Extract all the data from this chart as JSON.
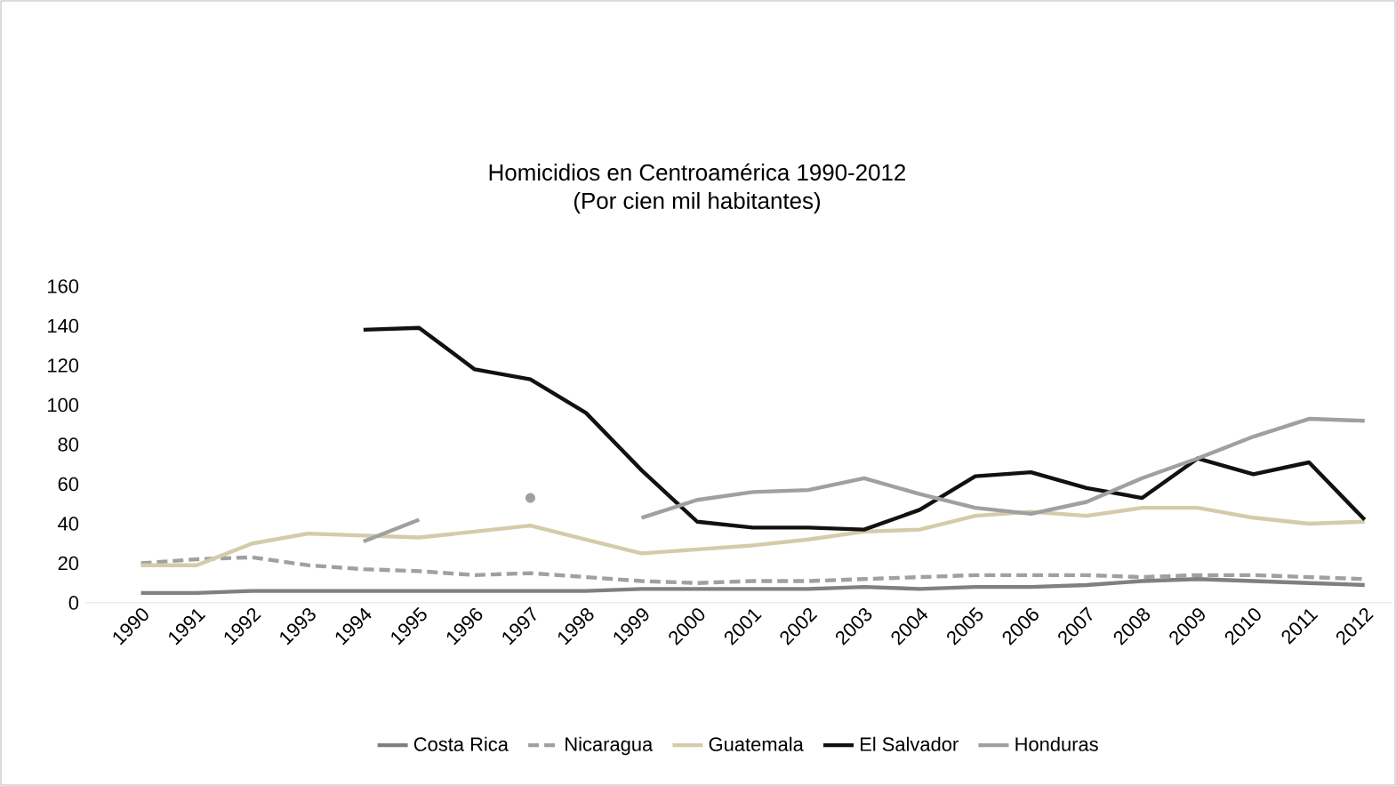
{
  "chart_data": {
    "type": "line",
    "title": "Homicidios en Centroamérica 1990-2012",
    "subtitle": "(Por cien mil habitantes)",
    "categories": [
      "1990",
      "1991",
      "1992",
      "1993",
      "1994",
      "1995",
      "1996",
      "1997",
      "1998",
      "1999",
      "2000",
      "2001",
      "2002",
      "2003",
      "2004",
      "2005",
      "2006",
      "2007",
      "2008",
      "2009",
      "2010",
      "2011",
      "2012"
    ],
    "series": [
      {
        "name": "Costa Rica",
        "color": "#808080",
        "values": [
          5,
          5,
          6,
          6,
          6,
          6,
          6,
          6,
          6,
          7,
          7,
          7,
          7,
          8,
          7,
          8,
          8,
          9,
          11,
          12,
          11,
          10,
          9
        ]
      },
      {
        "name": "Nicaragua",
        "color": "#a0a0a0",
        "line_style": "dashed",
        "values": [
          20,
          22,
          23,
          19,
          17,
          16,
          14,
          15,
          13,
          11,
          10,
          11,
          11,
          12,
          13,
          14,
          14,
          14,
          13,
          14,
          14,
          13,
          12
        ]
      },
      {
        "name": "Guatemala",
        "color": "#d4cbaa",
        "values": [
          19,
          19,
          30,
          35,
          34,
          33,
          36,
          39,
          32,
          25,
          27,
          29,
          32,
          36,
          37,
          44,
          46,
          44,
          48,
          48,
          43,
          40,
          41
        ]
      },
      {
        "name": "El Salvador",
        "color": "#111111",
        "values": [
          null,
          null,
          null,
          null,
          138,
          139,
          118,
          113,
          96,
          67,
          41,
          38,
          38,
          37,
          47,
          64,
          66,
          58,
          53,
          73,
          65,
          71,
          42
        ]
      },
      {
        "name": "Honduras",
        "color": "#a0a0a0",
        "values": [
          null,
          null,
          null,
          null,
          31,
          42,
          null,
          53,
          null,
          43,
          52,
          56,
          57,
          63,
          55,
          48,
          45,
          51,
          63,
          73,
          84,
          93,
          92
        ]
      }
    ],
    "ylim": [
      0,
      160
    ],
    "yticks": [
      0,
      20,
      40,
      60,
      80,
      100,
      120,
      140,
      160
    ],
    "grid": false,
    "legend": "bottom",
    "marker": "none"
  }
}
